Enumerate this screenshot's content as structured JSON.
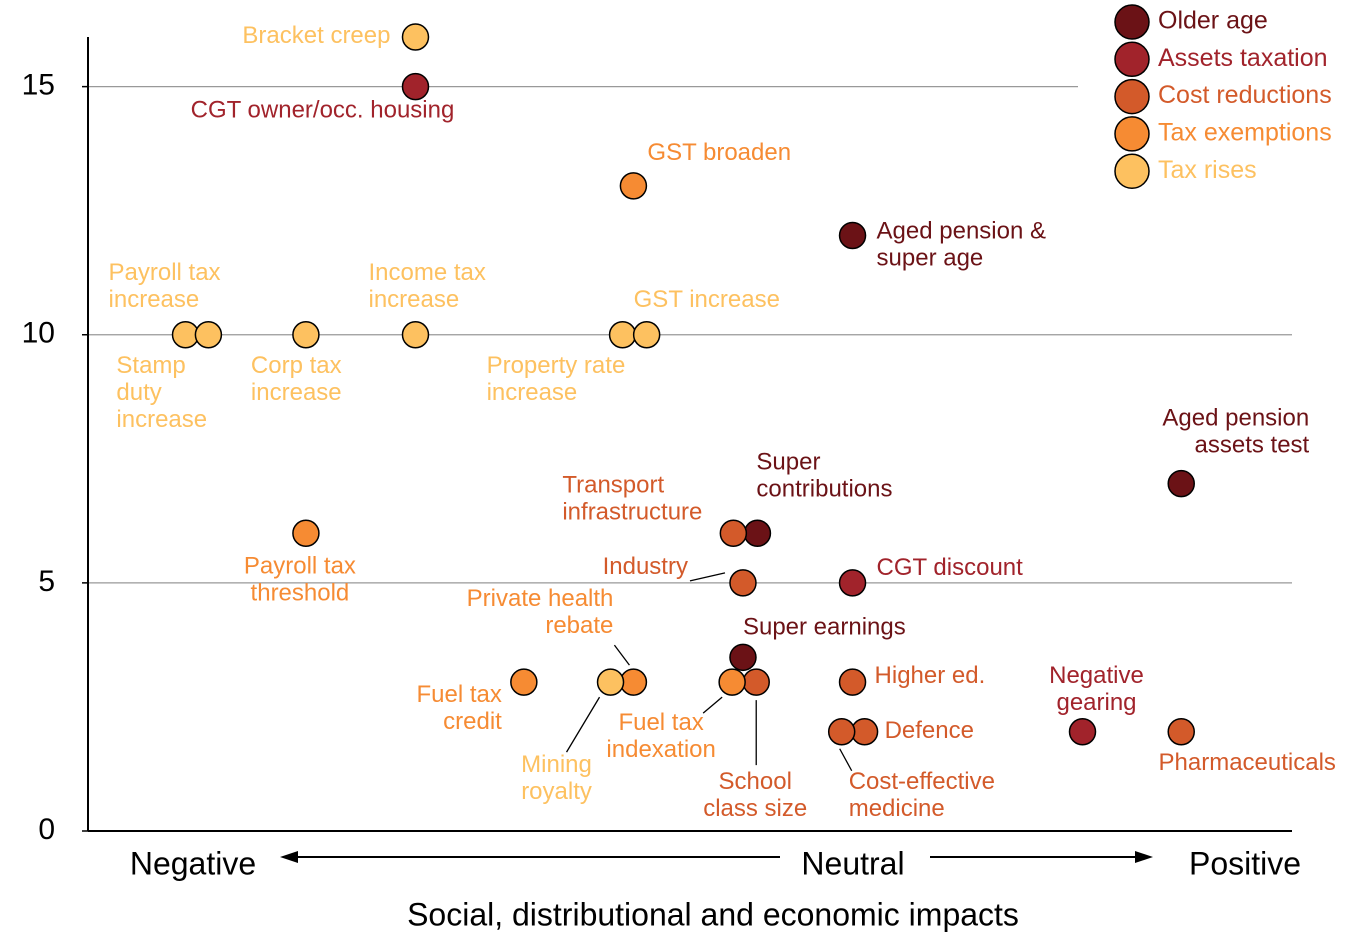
{
  "chart_data": {
    "type": "scatter",
    "xlabel": "Social, distributional and economic impacts",
    "x_axis_labels": [
      "Negative",
      "Neutral",
      "Positive"
    ],
    "xlim": [
      0,
      100
    ],
    "ylim": [
      0,
      16
    ],
    "yticks": [
      0,
      5,
      10,
      15
    ],
    "grid": true,
    "legend": "upper right",
    "series": [
      {
        "name": "Older age",
        "color": "#6b1216",
        "x": [
          63.5,
          55.6,
          54.4,
          90.8
        ],
        "values": [
          12,
          6,
          3.5,
          7
        ],
        "labels": [
          [
            "Aged pension &",
            "super age"
          ],
          [
            "Super",
            "contributions"
          ],
          [
            "Super earnings"
          ],
          [
            "Aged pension",
            "assets test"
          ]
        ]
      },
      {
        "name": "Assets taxation",
        "color": "#a1232b",
        "x": [
          27.2,
          63.5,
          82.6
        ],
        "values": [
          15,
          5,
          2
        ],
        "labels": [
          [
            "CGT owner/occ. housing"
          ],
          [
            "CGT discount"
          ],
          [
            "Negative",
            "gearing"
          ]
        ]
      },
      {
        "name": "Cost reductions",
        "color": "#d35a2a",
        "x": [
          53.6,
          54.4,
          55.5,
          63.5,
          64.5,
          62.6,
          90.8
        ],
        "values": [
          6,
          5,
          3,
          3,
          2,
          2,
          2
        ],
        "labels": [
          [
            "Transport",
            "infrastructure"
          ],
          [
            "Industry"
          ],
          [
            "School",
            "class size"
          ],
          [
            "Higher ed."
          ],
          [
            "Defence"
          ],
          [
            "Cost-effective",
            "medicine"
          ],
          [
            "Pharmaceuticals"
          ]
        ]
      },
      {
        "name": "Tax exemptions",
        "color": "#f68b33",
        "x": [
          45.3,
          18.1,
          36.2,
          45.3,
          53.5
        ],
        "values": [
          13,
          6,
          3,
          3,
          3
        ],
        "labels": [
          [
            "GST broaden"
          ],
          [
            "Payroll tax",
            "threshold"
          ],
          [
            "Fuel tax",
            "credit"
          ],
          [
            "Private health",
            "rebate"
          ],
          [
            "Fuel tax",
            "indexation"
          ]
        ]
      },
      {
        "name": "Tax rises",
        "color": "#fdc160",
        "x": [
          27.2,
          8.1,
          10.0,
          18.1,
          27.2,
          44.4,
          46.4,
          43.4
        ],
        "values": [
          16,
          10,
          10,
          10,
          10,
          10,
          10,
          3
        ],
        "labels": [
          [
            "Bracket creep"
          ],
          [
            "Payroll tax",
            "increase"
          ],
          [
            "Stamp",
            "duty",
            "increase"
          ],
          [
            "Corp tax",
            "increase"
          ],
          [
            "Income tax",
            "increase"
          ],
          [
            "Property rate",
            "increase"
          ],
          [
            "GST increase"
          ],
          [
            "Mining",
            "royalty"
          ]
        ]
      }
    ]
  }
}
